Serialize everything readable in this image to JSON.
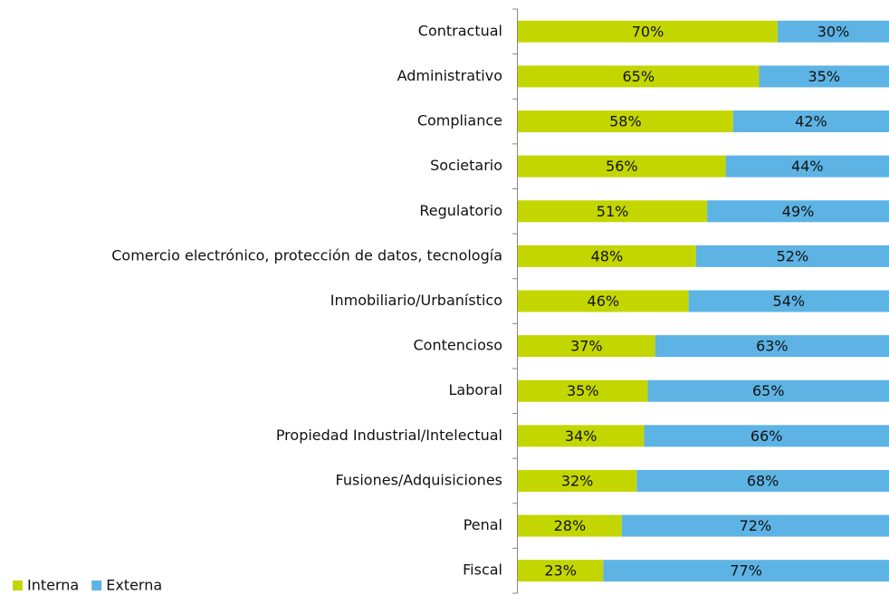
{
  "chart_data": {
    "type": "stacked_bar_horizontal",
    "categories": [
      "Contractual",
      "Administrativo",
      "Compliance",
      "Societario",
      "Regulatorio",
      "Comercio electrónico, protección de datos, tecnología",
      "Inmobiliario/Urbanístico",
      "Contencioso",
      "Laboral",
      "Propiedad Industrial/Intelectual",
      "Fusiones/Adquisiciones",
      "Penal",
      "Fiscal"
    ],
    "series": [
      {
        "name": "Interna",
        "color": "#c4d600",
        "values": [
          70,
          65,
          58,
          56,
          51,
          48,
          46,
          37,
          35,
          34,
          32,
          28,
          23
        ],
        "value_labels": [
          "70%",
          "65%",
          "58%",
          "56%",
          "51%",
          "48%",
          "46%",
          "37%",
          "35%",
          "34%",
          "32%",
          "28%",
          "23%"
        ]
      },
      {
        "name": "Externa",
        "color": "#5db3e4",
        "values": [
          30,
          35,
          42,
          44,
          49,
          52,
          54,
          63,
          65,
          66,
          68,
          72,
          77
        ],
        "value_labels": [
          "30%",
          "35%",
          "42%",
          "44%",
          "49%",
          "52%",
          "54%",
          "63%",
          "65%",
          "66%",
          "68%",
          "72%",
          "77%"
        ]
      }
    ],
    "xlim": [
      0,
      100
    ],
    "legend": "bottom-left"
  }
}
